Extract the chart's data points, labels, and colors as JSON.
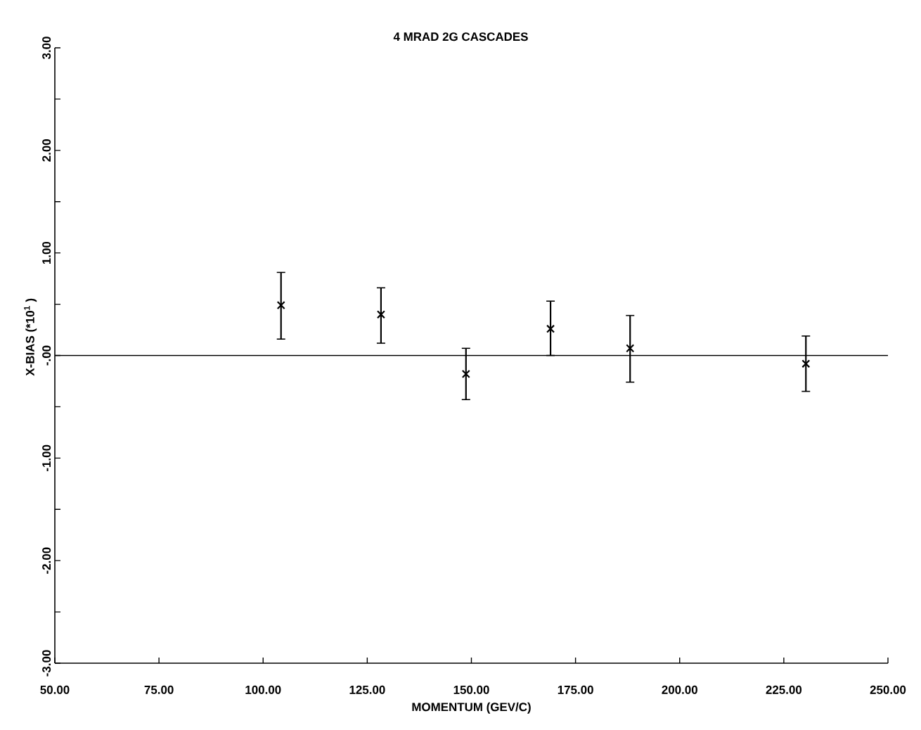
{
  "chart_data": {
    "type": "scatter",
    "title": "4 MRAD 2G CASCADES",
    "xlabel": "MOMENTUM (GEV/C)",
    "ylabel": "X-BIAS (*10$^{1}$ )",
    "x": [
      104.3,
      128.3,
      148.7,
      169.0,
      188.1,
      230.3
    ],
    "values": [
      0.49,
      0.4,
      -0.18,
      0.26,
      0.07,
      -0.08
    ],
    "errors": [
      [
        0.16,
        0.81
      ],
      [
        0.12,
        0.66
      ],
      [
        -0.43,
        0.07
      ],
      [
        0.0,
        0.53
      ],
      [
        -0.26,
        0.39
      ],
      [
        -0.35,
        0.19
      ]
    ],
    "color": "#000000",
    "marker": "cross",
    "xlim": [
      50,
      250
    ],
    "ylim": [
      -3,
      3
    ],
    "xticks": [
      {
        "value": 50,
        "label": "50.00"
      },
      {
        "value": 75,
        "label": "75.00"
      },
      {
        "value": 100,
        "label": "100.00"
      },
      {
        "value": 125,
        "label": "125.00"
      },
      {
        "value": 150,
        "label": "150.00"
      },
      {
        "value": 175,
        "label": "175.00"
      },
      {
        "value": 200,
        "label": "200.00"
      },
      {
        "value": 225,
        "label": "225.00"
      },
      {
        "value": 250,
        "label": "250.00"
      }
    ],
    "yticks": [
      {
        "value": -3,
        "label": "-3.00"
      },
      {
        "value": -2.5,
        "label": null
      },
      {
        "value": -2,
        "label": "-2.00"
      },
      {
        "value": -1.5,
        "label": null
      },
      {
        "value": -1,
        "label": "-1.00"
      },
      {
        "value": -0.5,
        "label": null
      },
      {
        "value": 0,
        "label": "-.00"
      },
      {
        "value": 0.5,
        "label": null
      },
      {
        "value": 1,
        "label": "1.00"
      },
      {
        "value": 1.5,
        "label": null
      },
      {
        "value": 2,
        "label": "2.00"
      },
      {
        "value": 2.5,
        "label": null
      },
      {
        "value": 3,
        "label": "3.00"
      }
    ],
    "ref_lines": [
      {
        "axis": "y",
        "value": 0
      }
    ]
  }
}
